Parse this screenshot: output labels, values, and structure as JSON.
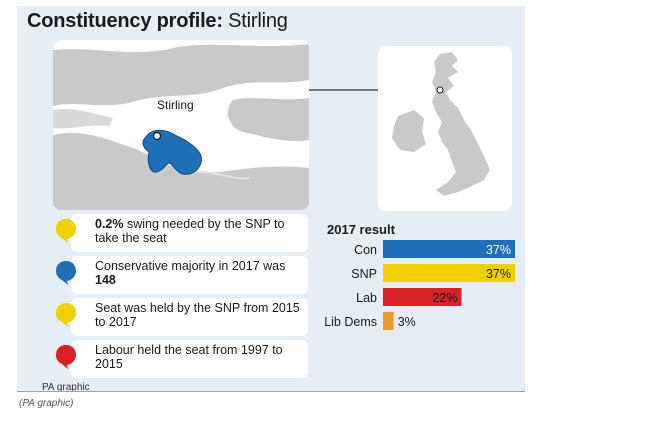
{
  "title": {
    "bold": "Constituency profile:",
    "regular": "Stirling"
  },
  "map": {
    "label": "Stirling"
  },
  "facts": [
    {
      "color": "#f0d000",
      "strong": "0.2%",
      "text": " swing needed by the SNP to take the seat"
    },
    {
      "color": "#1f6fb8",
      "text": "Conservative majority in 2017 was ",
      "strong_after": "148"
    },
    {
      "color": "#f0d000",
      "text": "Seat was held by the SNP from 2015 to 2017"
    },
    {
      "color": "#d92027",
      "text": "Labour held the seat from 1997 to 2015"
    }
  ],
  "chart_data": {
    "type": "bar",
    "orientation": "horizontal",
    "title": "2017 result",
    "categories": [
      "Con",
      "SNP",
      "Lab",
      "Lib Dems"
    ],
    "values": [
      37,
      37,
      22,
      3
    ],
    "value_labels": [
      "37%",
      "37%",
      "22%",
      "3%"
    ],
    "colors": [
      "#1f6fb8",
      "#f0d000",
      "#d92027",
      "#f39a2e"
    ],
    "xlim": [
      0,
      37
    ],
    "xlabel": "",
    "ylabel": ""
  },
  "credit": "PA graphic",
  "caption": "(PA graphic)"
}
